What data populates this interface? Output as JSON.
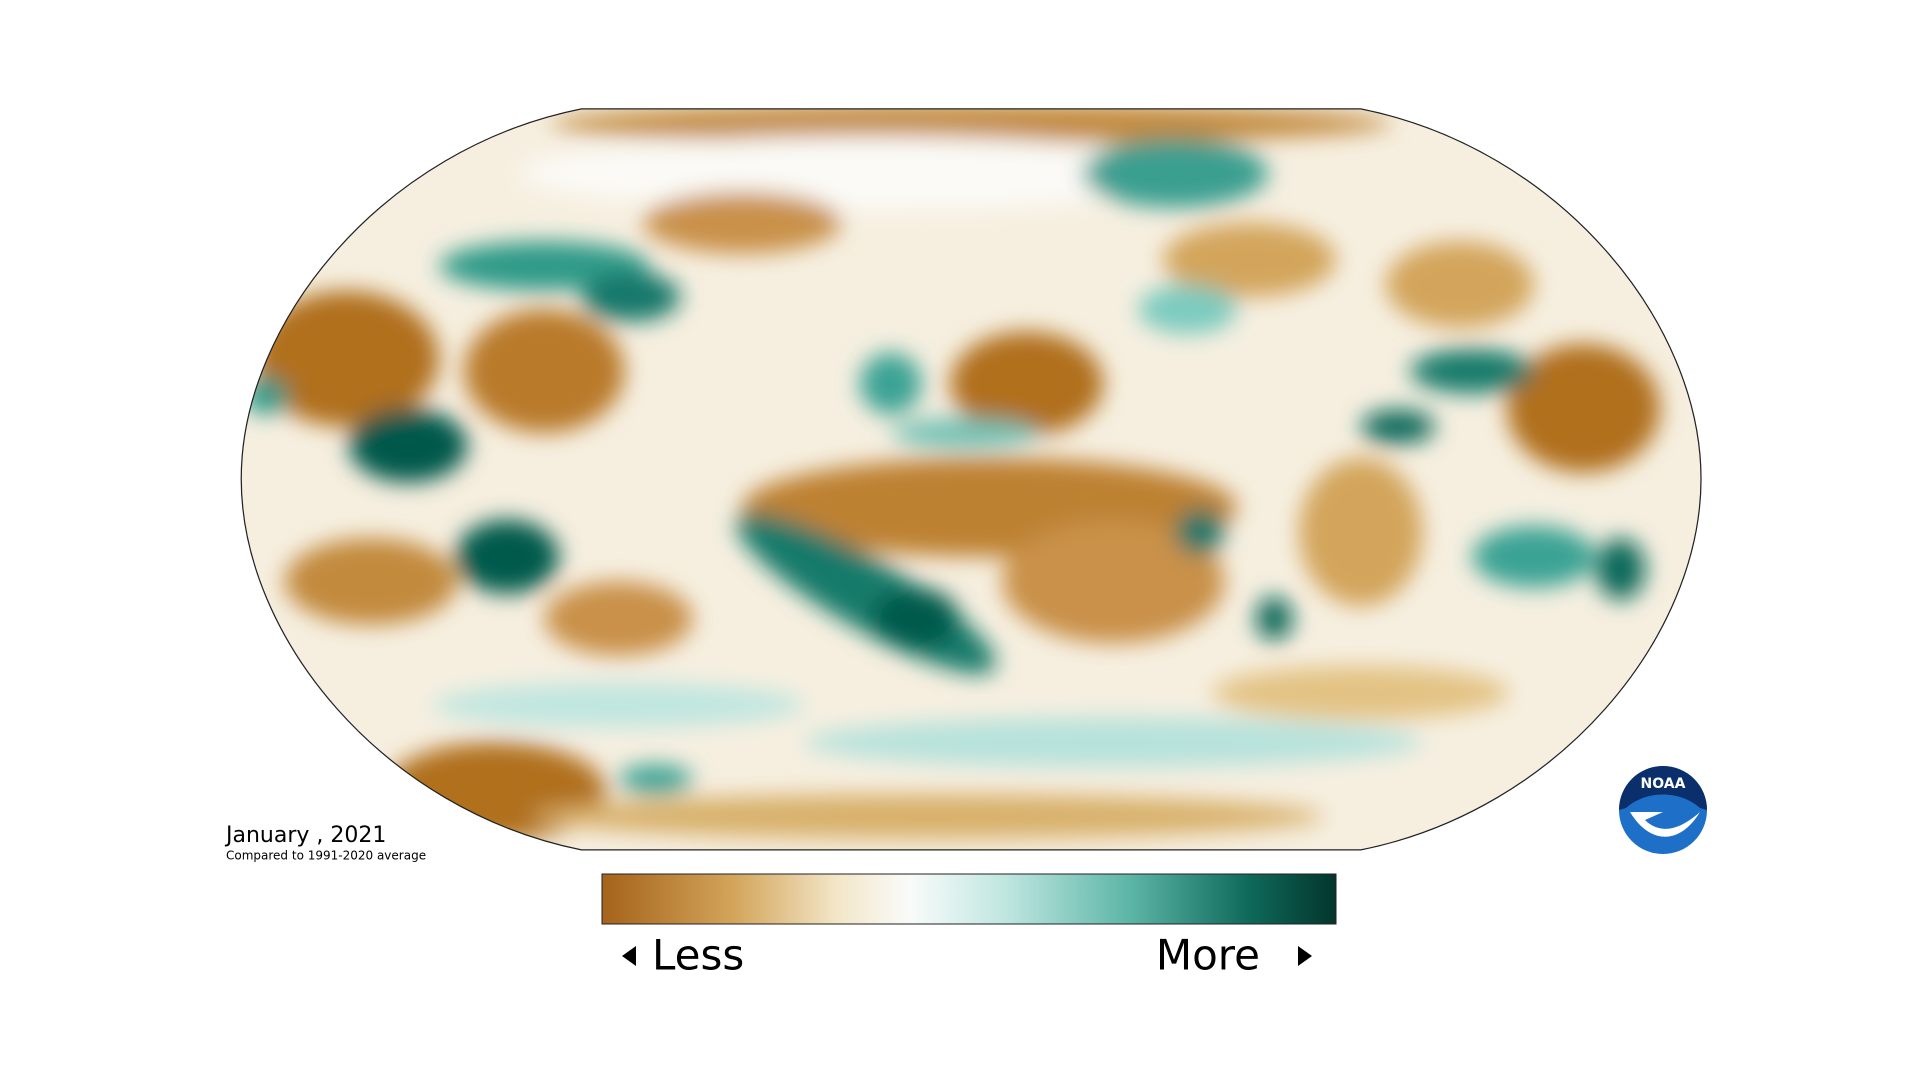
{
  "date_label": "January , 2021",
  "subtitle": "Compared to 1991-2020 average",
  "legend": {
    "less": "Less",
    "more": "More"
  },
  "logo": "NOAA"
}
